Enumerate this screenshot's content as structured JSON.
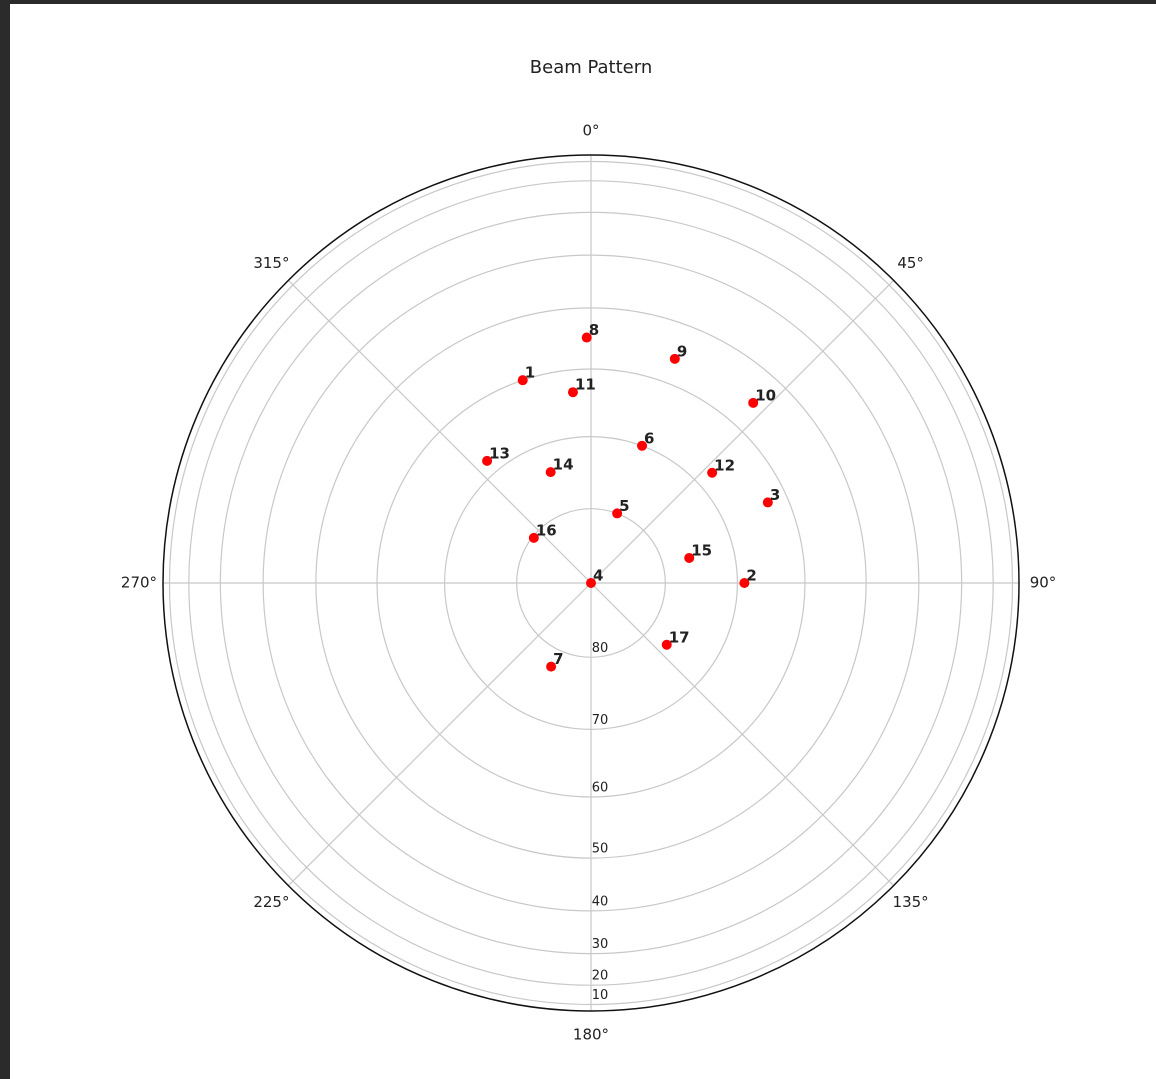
{
  "chart_data": {
    "type": "polar-scatter",
    "title": "Beam Pattern",
    "theta": [
      341.4,
      90,
      65.5,
      0,
      20.6,
      20.4,
      205.5,
      359,
      20.5,
      42,
      354.6,
      47.7,
      319.6,
      340,
      75.7,
      308.3,
      129.2
    ],
    "r": [
      60,
      69,
      63,
      90,
      80,
      70,
      77.5,
      55,
      56,
      55.5,
      63.4,
      67.5,
      68,
      74,
      76.3,
      80.2,
      76.8
    ],
    "point_labels": [
      "1",
      "2",
      "3",
      "4",
      "5",
      "6",
      "7",
      "8",
      "9",
      "10",
      "11",
      "12",
      "13",
      "14",
      "15",
      "16",
      "17"
    ],
    "color": "#ff0000",
    "rlim": [
      90,
      0
    ],
    "radial_scale": "cos",
    "rticks": [
      80,
      70,
      60,
      50,
      40,
      30,
      20,
      10
    ],
    "thetaticks": [
      {
        "value": 0,
        "label": "0°"
      },
      {
        "value": 45,
        "label": "45°"
      },
      {
        "value": 90,
        "label": "90°"
      },
      {
        "value": 135,
        "label": "135°"
      },
      {
        "value": 180,
        "label": "180°"
      },
      {
        "value": 225,
        "label": "225°"
      },
      {
        "value": 270,
        "label": "270°"
      },
      {
        "value": 315,
        "label": "315°"
      }
    ],
    "grid": true
  }
}
